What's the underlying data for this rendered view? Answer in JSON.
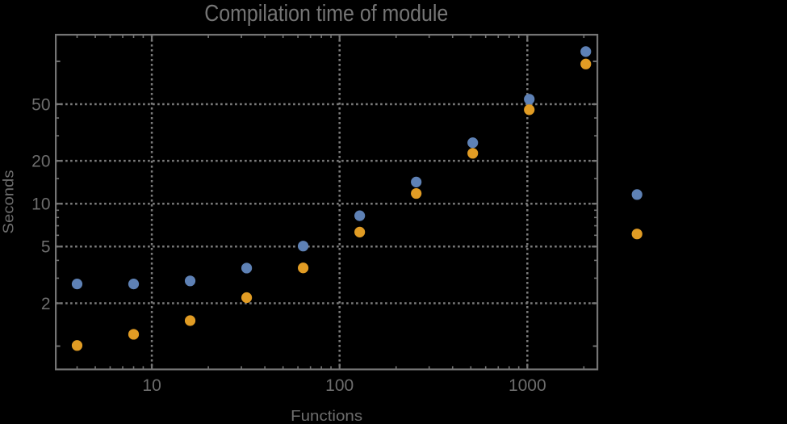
{
  "chart_data": {
    "type": "scatter",
    "title": "Compilation time of module",
    "xlabel": "Functions",
    "ylabel": "Seconds",
    "x_scale": "log",
    "y_scale": "log",
    "xlim": [
      3.08,
      2361
    ],
    "ylim": [
      0.686,
      153.7
    ],
    "grid": "dotted gridlines at labeled major ticks only",
    "legend_position": "outside right, markers only (labels not visible)",
    "x": [
      4,
      8,
      16,
      32,
      64,
      128,
      256,
      512,
      1024,
      2048
    ],
    "series": [
      {
        "name": "blue",
        "color": "#5E81B5",
        "values": [
          2.73,
          2.73,
          2.87,
          3.53,
          5.04,
          8.23,
          14.2,
          26.8,
          54.2,
          117
        ]
      },
      {
        "name": "orange",
        "color": "#E19C24",
        "values": [
          1.01,
          1.21,
          1.51,
          2.19,
          3.54,
          6.32,
          11.8,
          22.6,
          45.7,
          95.7
        ]
      }
    ],
    "x_axis": {
      "major_ticks": [
        10,
        100,
        1000
      ],
      "major_labels": [
        "10",
        "100",
        "1000"
      ],
      "minor_ticks": [
        4,
        5,
        6,
        7,
        8,
        9,
        20,
        30,
        40,
        50,
        60,
        70,
        80,
        90,
        200,
        300,
        400,
        500,
        600,
        700,
        800,
        900,
        2000
      ]
    },
    "y_axis": {
      "major_ticks": [
        2,
        5,
        10,
        20,
        50
      ],
      "major_labels": [
        "2",
        "5",
        "10",
        "20",
        "50"
      ],
      "mid_ticks": [
        1,
        100
      ],
      "minor_ticks": [
        3,
        4,
        6,
        7,
        8,
        9,
        15,
        30,
        40
      ]
    },
    "colors": {
      "background": "#000000",
      "frame": "#747474",
      "grid": "#7c7c7c",
      "tick_label": "#6d6d6d",
      "title": "#757575",
      "axis_label": "#6d6d6d"
    }
  }
}
